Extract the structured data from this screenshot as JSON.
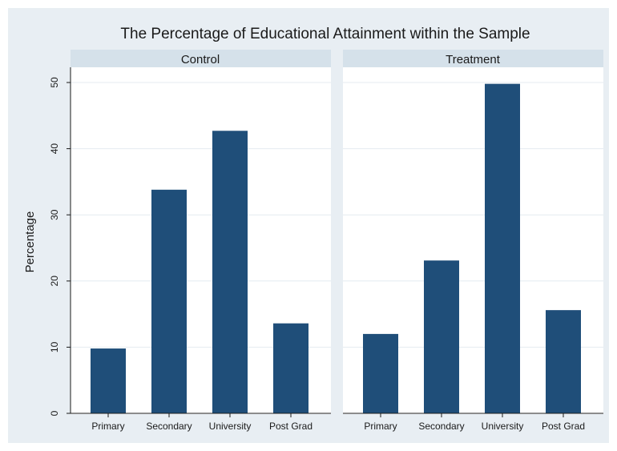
{
  "chart_data": {
    "type": "bar",
    "title": "The Percentage of Educational Attainment within the Sample",
    "xlabel": "",
    "ylabel": "Percentage",
    "ylim": [
      0,
      50
    ],
    "yticks": [
      0,
      10,
      20,
      30,
      40,
      50
    ],
    "grid": true,
    "bar_color": "#1f4e79",
    "background_color": "#e8eef3",
    "panel_color": "#ffffff",
    "strip_color": "#d5e1ea",
    "categories": [
      "Primary",
      "Secondary",
      "University",
      "Post Grad"
    ],
    "panels": [
      {
        "label": "Control",
        "values": [
          9.8,
          33.8,
          42.7,
          13.6
        ]
      },
      {
        "label": "Treatment",
        "values": [
          12.0,
          23.1,
          49.8,
          15.6
        ]
      }
    ]
  }
}
